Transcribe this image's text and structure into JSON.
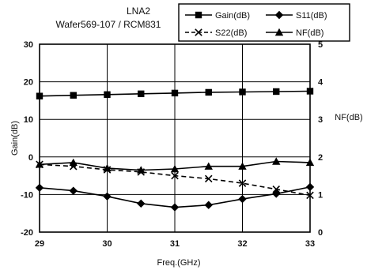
{
  "chart_data": {
    "type": "line",
    "title": "LNA2",
    "subtitle": "Wafer569-107 / RCM831",
    "xlabel": "Freq.(GHz)",
    "ylabel": "Gain(dB)",
    "y2label": "NF(dB)",
    "xlim": [
      29,
      33
    ],
    "ylim": [
      -20,
      30
    ],
    "y2lim": [
      0,
      5
    ],
    "xticks": [
      "29",
      "30",
      "31",
      "32",
      "33"
    ],
    "yticks": [
      "30",
      "20",
      "10",
      "0",
      "-10",
      "-20"
    ],
    "y2ticks": [
      "5",
      "4",
      "3",
      "2",
      "1",
      "0"
    ],
    "grid": true,
    "legend_position": "top-right",
    "x": [
      29,
      29.5,
      30,
      30.5,
      31,
      31.5,
      32,
      32.5,
      33
    ],
    "series": [
      {
        "name": "Gain(dB)",
        "axis": "left",
        "marker": "square",
        "style": "solid",
        "values": [
          16.2,
          16.4,
          16.6,
          16.8,
          17.0,
          17.2,
          17.3,
          17.4,
          17.5
        ]
      },
      {
        "name": "S11(dB)",
        "axis": "left",
        "marker": "diamond",
        "style": "solid",
        "values": [
          -8.2,
          -9.0,
          -10.5,
          -12.4,
          -13.4,
          -12.8,
          -11.2,
          -9.8,
          -8.0
        ]
      },
      {
        "name": "S22(dB)",
        "axis": "left",
        "marker": "x",
        "style": "dashed",
        "values": [
          -2.0,
          -2.5,
          -3.4,
          -4.0,
          -5.0,
          -5.8,
          -7.0,
          -8.6,
          -10.2
        ]
      },
      {
        "name": "NF(dB)",
        "axis": "right",
        "marker": "triangle",
        "style": "solid",
        "values": [
          1.8,
          1.85,
          1.7,
          1.65,
          1.68,
          1.75,
          1.75,
          1.88,
          1.85
        ]
      }
    ]
  }
}
